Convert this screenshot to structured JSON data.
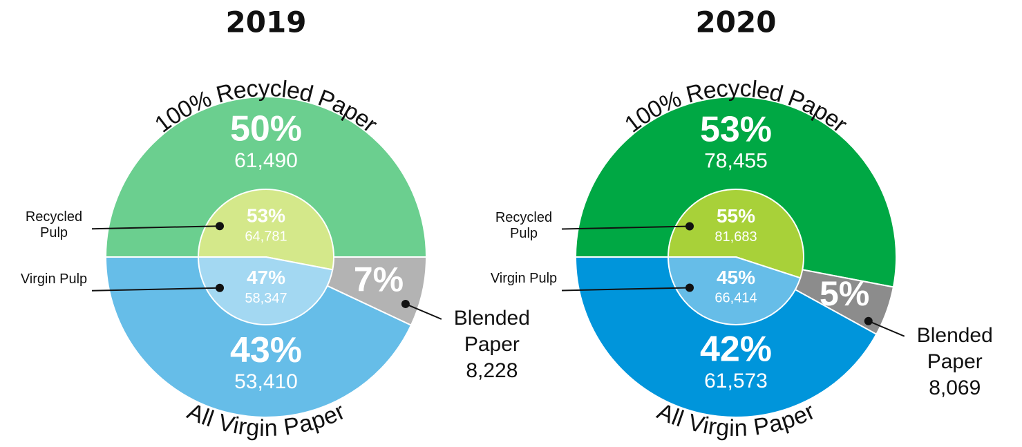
{
  "chart_data": [
    {
      "type": "pie",
      "title": "2019",
      "outer": {
        "categories": [
          "100% Recycled Paper",
          "Blended Paper",
          "All Virgin Paper"
        ],
        "values": [
          50,
          7,
          43
        ],
        "value_labels": [
          "50%",
          "7%",
          "43%"
        ],
        "counts": [
          61490,
          8228,
          53410
        ],
        "count_labels": [
          "61,490",
          "8,228",
          "53,410"
        ],
        "colors": [
          "#6bcf8f",
          "#b3b3b3",
          "#66bde8"
        ]
      },
      "inner": {
        "categories": [
          "Recycled Pulp",
          "Virgin Pulp"
        ],
        "values": [
          53,
          47
        ],
        "value_labels": [
          "53%",
          "47%"
        ],
        "counts": [
          64781,
          58347
        ],
        "count_labels": [
          "64,781",
          "58,347"
        ],
        "colors": [
          "#d4e88a",
          "#a3d8f2"
        ]
      }
    },
    {
      "type": "pie",
      "title": "2020",
      "outer": {
        "categories": [
          "100% Recycled Paper",
          "Blended Paper",
          "All Virgin Paper"
        ],
        "values": [
          53,
          5,
          42
        ],
        "value_labels": [
          "53%",
          "5%",
          "42%"
        ],
        "counts": [
          78455,
          8069,
          61573
        ],
        "count_labels": [
          "78,455",
          "8,069",
          "61,573"
        ],
        "colors": [
          "#00a844",
          "#8c8c8c",
          "#0095db"
        ]
      },
      "inner": {
        "categories": [
          "Recycled Pulp",
          "Virgin Pulp"
        ],
        "values": [
          55,
          45
        ],
        "value_labels": [
          "55%",
          "45%"
        ],
        "counts": [
          81683,
          66414
        ],
        "count_labels": [
          "81,683",
          "66,414"
        ],
        "colors": [
          "#a8d139",
          "#66bde8"
        ]
      }
    }
  ]
}
